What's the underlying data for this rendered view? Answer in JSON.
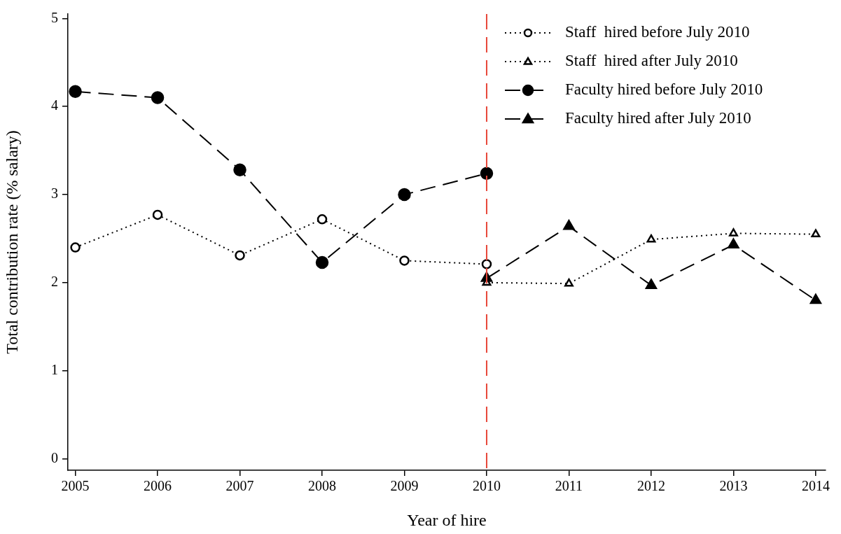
{
  "chart_data": {
    "type": "line",
    "xlabel": "Year of hire",
    "ylabel": "Total contribution rate (% salary)",
    "x": [
      2005,
      2006,
      2007,
      2008,
      2009,
      2010,
      2011,
      2012,
      2013,
      2014
    ],
    "xlim": [
      2004.91,
      2014.12
    ],
    "xticks": [
      2005,
      2006,
      2007,
      2008,
      2009,
      2010,
      2011,
      2012,
      2013,
      2014
    ],
    "ylim": [
      -0.13,
      5.05
    ],
    "yticks": [
      0,
      1,
      2,
      3,
      4,
      5
    ],
    "grid": false,
    "legend": "top right",
    "ref_lines": [
      {
        "axis": "x",
        "value": 2010,
        "color": "#e8473a",
        "line_style": "dashed"
      }
    ],
    "series": [
      {
        "name": "Staff  hired before July 2010",
        "color": "#000000",
        "marker": "circle",
        "line_style": "dotted",
        "values": [
          2.4,
          2.77,
          2.31,
          2.72,
          2.25,
          2.21,
          null,
          null,
          null,
          null
        ]
      },
      {
        "name": "Staff  hired after July 2010",
        "color": "#000000",
        "marker": "triangle",
        "line_style": "dotted",
        "values": [
          null,
          null,
          null,
          null,
          null,
          2.0,
          1.99,
          2.49,
          2.56,
          2.55
        ]
      },
      {
        "name": "Faculty hired before July 2010",
        "color": "#000000",
        "marker": "circle",
        "line_style": "dashed",
        "values": [
          4.17,
          4.1,
          3.28,
          2.23,
          3.0,
          3.24,
          null,
          null,
          null,
          null
        ]
      },
      {
        "name": "Faculty hired after July 2010",
        "color": "#000000",
        "marker": "triangle",
        "line_style": "dashed",
        "values": [
          null,
          null,
          null,
          null,
          null,
          2.05,
          2.64,
          1.97,
          2.43,
          1.8
        ]
      }
    ]
  }
}
